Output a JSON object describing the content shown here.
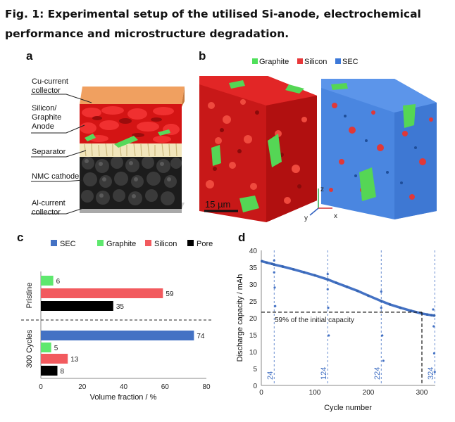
{
  "figure": {
    "title": "Fig. 1: Experimental setup of the utilised Si-anode, electrochemical performance and microstructure degradation.",
    "panels": [
      "a",
      "b",
      "c",
      "d"
    ]
  },
  "panel_a": {
    "labels": [
      "Cu-current collector",
      "Silicon/ Graphite Anode",
      "Separator",
      "NMC cathode",
      "Al-current collector"
    ]
  },
  "panel_b": {
    "legend": [
      {
        "name": "Graphite",
        "color": "#4fe05a"
      },
      {
        "name": "Silicon",
        "color": "#e8383a"
      },
      {
        "name": "SEC",
        "color": "#3c78d8"
      }
    ],
    "scale_bar": "15 µm",
    "axes": {
      "z": "z",
      "y": "y",
      "x": "x"
    }
  },
  "chart_data": [
    {
      "type": "bar",
      "orientation": "horizontal",
      "legend": [
        "SEC",
        "Graphite",
        "Silicon",
        "Pore"
      ],
      "colors": {
        "SEC": "#4472c4",
        "Graphite": "#5ee86e",
        "Silicon": "#f25a5e",
        "Pore": "#000000"
      },
      "groups": [
        {
          "name": "Pristine",
          "bars": [
            {
              "series": "Graphite",
              "value": 6
            },
            {
              "series": "Silicon",
              "value": 59
            },
            {
              "series": "Pore",
              "value": 35
            }
          ]
        },
        {
          "name": "300 Cycles",
          "bars": [
            {
              "series": "SEC",
              "value": 74
            },
            {
              "series": "Graphite",
              "value": 5
            },
            {
              "series": "Silicon",
              "value": 13
            },
            {
              "series": "Pore",
              "value": 8
            }
          ]
        }
      ],
      "xlabel": "Volume fraction / %",
      "xlim": [
        0,
        80
      ],
      "xticks": [
        0,
        20,
        40,
        60,
        80
      ]
    },
    {
      "type": "scatter",
      "xlabel": "Cycle number",
      "ylabel": "Discharge capacity / mAh",
      "xlim": [
        0,
        325
      ],
      "ylim": [
        0,
        40
      ],
      "xticks": [
        0,
        100,
        200,
        300
      ],
      "yticks": [
        0,
        5,
        10,
        15,
        20,
        25,
        30,
        35,
        40
      ],
      "series": [
        {
          "values": [
            [
              1,
              36.8
            ],
            [
              10,
              36.4
            ],
            [
              20,
              36.0
            ],
            [
              24,
              35.8
            ],
            [
              40,
              35.2
            ],
            [
              60,
              34.4
            ],
            [
              80,
              33.5
            ],
            [
              100,
              32.6
            ],
            [
              124,
              31.4
            ],
            [
              140,
              30.4
            ],
            [
              160,
              29.2
            ],
            [
              180,
              28.0
            ],
            [
              200,
              26.6
            ],
            [
              224,
              25.0
            ],
            [
              240,
              24.0
            ],
            [
              260,
              23.0
            ],
            [
              280,
              22.1
            ],
            [
              300,
              21.3
            ],
            [
              310,
              21.0
            ],
            [
              318,
              20.8
            ],
            [
              323,
              20.7
            ]
          ]
        },
        {
          "values": [
            [
              24,
              37.0
            ],
            [
              24,
              33.5
            ],
            [
              25,
              29.0
            ],
            [
              26,
              23.5
            ],
            [
              124,
              33.0
            ],
            [
              124,
              28.5
            ],
            [
              125,
              23.0
            ],
            [
              126,
              14.8
            ],
            [
              224,
              27.8
            ],
            [
              224,
              23.0
            ],
            [
              226,
              14.8
            ],
            [
              228,
              7.3
            ],
            [
              321,
              22.5
            ],
            [
              322,
              17.5
            ],
            [
              323,
              9.5
            ],
            [
              324,
              4.0
            ]
          ]
        }
      ],
      "markers": [
        {
          "cycle": "24"
        },
        {
          "cycle": "124"
        },
        {
          "cycle": "224"
        },
        {
          "cycle": "324"
        }
      ],
      "threshold": {
        "label": "59% of the initial capacity",
        "value": 21.7,
        "cycle": 300
      }
    }
  ]
}
